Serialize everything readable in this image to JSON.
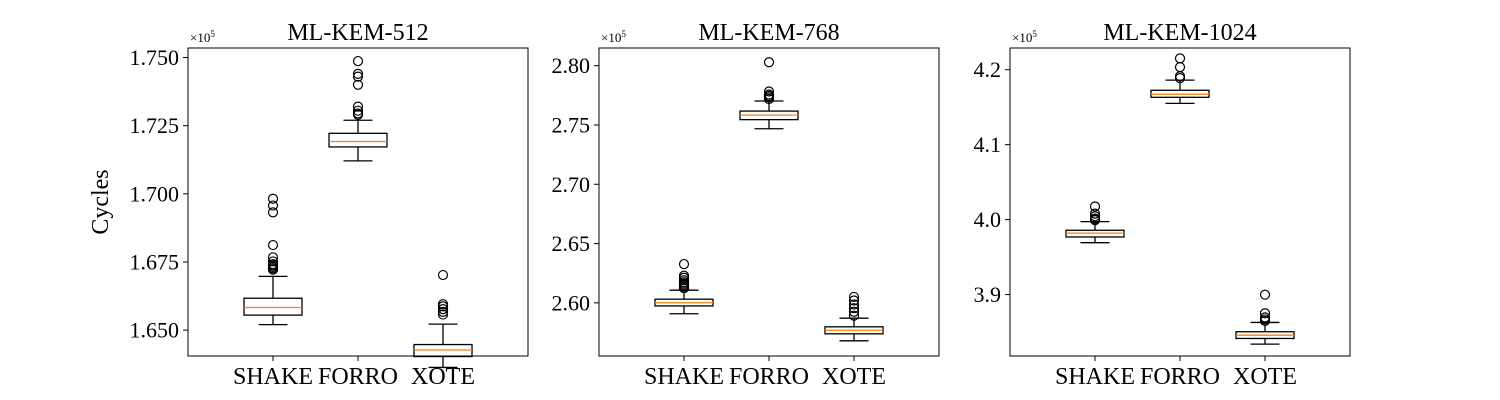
{
  "ylabel": "Cycles",
  "chart_data": [
    {
      "type": "box",
      "title": "ML-KEM-512",
      "multiplier": "×10",
      "multiplier_exp": "5",
      "ylim": [
        1.6405,
        1.7535
      ],
      "yticks": [
        1.65,
        1.675,
        1.7,
        1.725,
        1.75
      ],
      "ytick_labels": [
        "1.650",
        "1.675",
        "1.700",
        "1.725",
        "1.750"
      ],
      "categories": [
        "SHAKE",
        "FORRO",
        "XOTE"
      ],
      "boxes": [
        {
          "whislo": 1.652,
          "q1": 1.6555,
          "med": 1.6583,
          "q3": 1.6617,
          "whishi": 1.6697,
          "fliers": [
            1.6722,
            1.6727,
            1.6732,
            1.6737,
            1.6742,
            1.6752,
            1.6767,
            1.6812,
            1.6932,
            1.6957,
            1.6982
          ]
        },
        {
          "whislo": 1.7121,
          "q1": 1.7172,
          "med": 1.7192,
          "q3": 1.7222,
          "whishi": 1.727,
          "fliers": [
            1.729,
            1.7295,
            1.7305,
            1.732,
            1.74,
            1.743,
            1.744,
            1.7487
          ]
        },
        {
          "whislo": 1.6363,
          "q1": 1.6403,
          "med": 1.6427,
          "q3": 1.6447,
          "whishi": 1.6522,
          "fliers": [
            1.6557,
            1.6567,
            1.6577,
            1.6587,
            1.6595,
            1.6702
          ]
        }
      ]
    },
    {
      "type": "box",
      "title": "ML-KEM-768",
      "multiplier": "×10",
      "multiplier_exp": "5",
      "ylim": [
        2.5552,
        2.8149
      ],
      "yticks": [
        2.6,
        2.65,
        2.7,
        2.75,
        2.8
      ],
      "ytick_labels": [
        "2.60",
        "2.65",
        "2.70",
        "2.75",
        "2.80"
      ],
      "categories": [
        "SHAKE",
        "FORRO",
        "XOTE"
      ],
      "boxes": [
        {
          "whislo": 2.5908,
          "q1": 2.5974,
          "med": 2.6001,
          "q3": 2.6031,
          "whishi": 2.6107,
          "fliers": [
            2.6124,
            2.6136,
            2.6149,
            2.6161,
            2.6174,
            2.6191,
            2.6212,
            2.6229,
            2.6327
          ]
        },
        {
          "whislo": 2.7468,
          "q1": 2.7545,
          "med": 2.7583,
          "q3": 2.7617,
          "whishi": 2.7702,
          "fliers": [
            2.7719,
            2.7732,
            2.7744,
            2.7757,
            2.7782,
            2.8029
          ]
        },
        {
          "whislo": 2.568,
          "q1": 2.5739,
          "med": 2.5769,
          "q3": 2.5798,
          "whishi": 2.5871,
          "fliers": [
            2.5892,
            2.5925,
            2.5955,
            2.5986,
            2.602,
            2.605
          ]
        }
      ]
    },
    {
      "type": "box",
      "title": "ML-KEM-1024",
      "multiplier": "×10",
      "multiplier_exp": "5",
      "ylim": [
        3.818,
        4.229
      ],
      "yticks": [
        3.9,
        4.0,
        4.1,
        4.2
      ],
      "ytick_labels": [
        "3.9",
        "4.0",
        "4.1",
        "4.2"
      ],
      "categories": [
        "SHAKE",
        "FORRO",
        "XOTE"
      ],
      "boxes": [
        {
          "whislo": 3.9692,
          "q1": 3.9768,
          "med": 3.982,
          "q3": 3.9858,
          "whishi": 3.9973,
          "fliers": [
            3.9993,
            4.0,
            4.0013,
            4.0045,
            4.008,
            4.0175
          ]
        },
        {
          "whislo": 4.1551,
          "q1": 4.1632,
          "med": 4.1674,
          "q3": 4.1726,
          "whishi": 4.1861,
          "fliers": [
            4.1888,
            4.1913,
            4.2035,
            4.2152
          ]
        },
        {
          "whislo": 3.8338,
          "q1": 3.8414,
          "med": 3.8458,
          "q3": 3.8504,
          "whishi": 3.8628,
          "fliers": [
            3.8648,
            3.8668,
            3.8695,
            3.875,
            3.8998
          ]
        }
      ]
    }
  ]
}
